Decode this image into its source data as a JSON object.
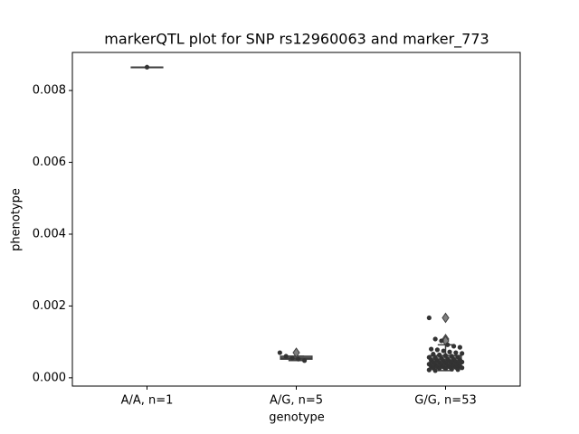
{
  "chart_data": {
    "type": "box",
    "title": "markerQTL plot for SNP rs12960063 and marker_773",
    "xlabel": "genotype",
    "ylabel": "phenotype",
    "categories": [
      "A/A, n=1",
      "A/G, n=5",
      "G/G, n=53"
    ],
    "box_color": "#7f7f7f",
    "point_color": "#333333",
    "ylim": [
      -0.00023,
      0.00906
    ],
    "yticks": [
      {
        "value": 0,
        "label": "0.000"
      },
      {
        "value": 0.002,
        "label": "0.002"
      },
      {
        "value": 0.004,
        "label": "0.004"
      },
      {
        "value": 0.006,
        "label": "0.006"
      },
      {
        "value": 0.008,
        "label": "0.008"
      }
    ],
    "boxes": [
      {
        "min": 0.00865,
        "q1": 0.00865,
        "median": 0.00865,
        "q3": 0.00865,
        "max": 0.00865,
        "outliers": [],
        "points": [
          0.00865
        ]
      },
      {
        "min": 0.00048,
        "q1": 0.00052,
        "median": 0.00055,
        "q3": 0.0006,
        "max": 0.0006,
        "outliers": [
          0.0007
        ],
        "points": [
          0.0007,
          0.0006,
          0.00055,
          0.00052,
          0.00048
        ]
      },
      {
        "min": 0.0002,
        "q1": 0.0003,
        "median": 0.00045,
        "q3": 0.00062,
        "max": 0.00092,
        "outliers": [
          0.00167,
          0.00108,
          0.00103
        ],
        "points": [
          0.00167,
          0.00108,
          0.00103,
          0.00092,
          0.00088,
          0.00085,
          0.0008,
          0.00078,
          0.00075,
          0.00072,
          0.0007,
          0.00068,
          0.00066,
          0.00064,
          0.00062,
          0.0006,
          0.00058,
          0.00057,
          0.00055,
          0.00054,
          0.00052,
          0.00051,
          0.0005,
          0.00049,
          0.00048,
          0.00047,
          0.00046,
          0.00045,
          0.00044,
          0.00043,
          0.00042,
          0.00041,
          0.0004,
          0.00039,
          0.00038,
          0.00037,
          0.00036,
          0.00035,
          0.00034,
          0.00033,
          0.00032,
          0.00031,
          0.0003,
          0.0003,
          0.00029,
          0.00028,
          0.00027,
          0.00026,
          0.00025,
          0.00024,
          0.00023,
          0.00022,
          0.0002
        ]
      }
    ]
  }
}
